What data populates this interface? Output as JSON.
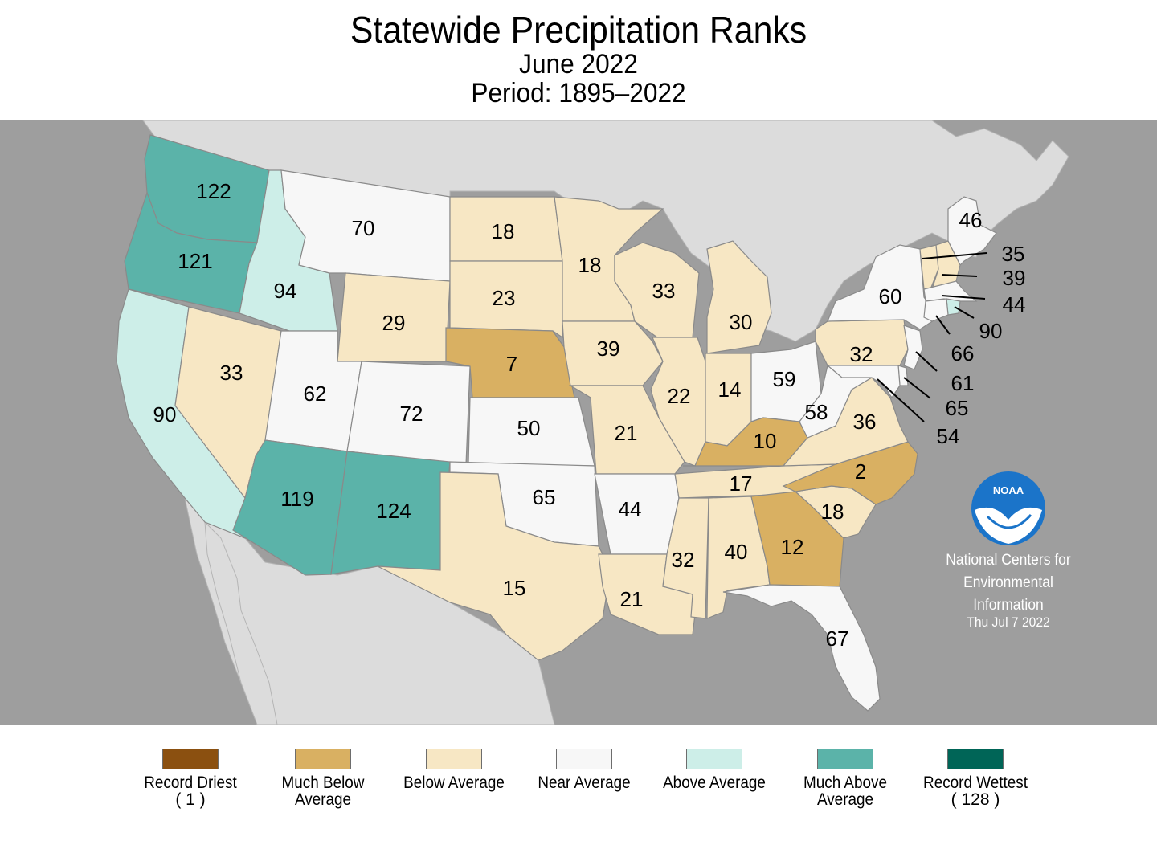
{
  "header": {
    "title": "Statewide Precipitation Ranks",
    "subtitle": "June 2022",
    "period": "Period: 1895–2022"
  },
  "colors": {
    "record_driest": "#8b5010",
    "much_below": "#d9b062",
    "below": "#f7e7c4",
    "near": "#f7f7f7",
    "above": "#cdeee8",
    "much_above": "#5bb3a9",
    "record_wettest": "#006557",
    "ocean": "#9e9e9e",
    "land": "#dcdcdc"
  },
  "states": [
    {
      "code": "WA",
      "rank": "122",
      "category": "much_above"
    },
    {
      "code": "OR",
      "rank": "121",
      "category": "much_above"
    },
    {
      "code": "CA",
      "rank": "90",
      "category": "above"
    },
    {
      "code": "ID",
      "rank": "94",
      "category": "above"
    },
    {
      "code": "NV",
      "rank": "33",
      "category": "below"
    },
    {
      "code": "MT",
      "rank": "70",
      "category": "near"
    },
    {
      "code": "WY",
      "rank": "29",
      "category": "below"
    },
    {
      "code": "UT",
      "rank": "62",
      "category": "near"
    },
    {
      "code": "CO",
      "rank": "72",
      "category": "near"
    },
    {
      "code": "AZ",
      "rank": "119",
      "category": "much_above"
    },
    {
      "code": "NM",
      "rank": "124",
      "category": "much_above"
    },
    {
      "code": "ND",
      "rank": "18",
      "category": "below"
    },
    {
      "code": "SD",
      "rank": "23",
      "category": "below"
    },
    {
      "code": "NE",
      "rank": "7",
      "category": "much_below"
    },
    {
      "code": "KS",
      "rank": "50",
      "category": "near"
    },
    {
      "code": "OK",
      "rank": "65",
      "category": "near"
    },
    {
      "code": "TX",
      "rank": "15",
      "category": "below"
    },
    {
      "code": "MN",
      "rank": "18",
      "category": "below"
    },
    {
      "code": "IA",
      "rank": "39",
      "category": "below"
    },
    {
      "code": "MO",
      "rank": "21",
      "category": "below"
    },
    {
      "code": "AR",
      "rank": "44",
      "category": "near"
    },
    {
      "code": "LA",
      "rank": "21",
      "category": "below"
    },
    {
      "code": "WI",
      "rank": "33",
      "category": "below"
    },
    {
      "code": "IL",
      "rank": "22",
      "category": "below"
    },
    {
      "code": "MI",
      "rank": "30",
      "category": "below"
    },
    {
      "code": "IN",
      "rank": "14",
      "category": "below"
    },
    {
      "code": "OH",
      "rank": "59",
      "category": "near"
    },
    {
      "code": "KY",
      "rank": "10",
      "category": "much_below"
    },
    {
      "code": "TN",
      "rank": "17",
      "category": "below"
    },
    {
      "code": "MS",
      "rank": "32",
      "category": "below"
    },
    {
      "code": "AL",
      "rank": "40",
      "category": "below"
    },
    {
      "code": "GA",
      "rank": "12",
      "category": "much_below"
    },
    {
      "code": "FL",
      "rank": "67",
      "category": "near"
    },
    {
      "code": "SC",
      "rank": "18",
      "category": "below"
    },
    {
      "code": "NC",
      "rank": "2",
      "category": "much_below"
    },
    {
      "code": "VA",
      "rank": "36",
      "category": "below"
    },
    {
      "code": "WV",
      "rank": "58",
      "category": "near"
    },
    {
      "code": "PA",
      "rank": "32",
      "category": "below"
    },
    {
      "code": "NY",
      "rank": "60",
      "category": "near"
    },
    {
      "code": "ME",
      "rank": "46",
      "category": "near"
    },
    {
      "code": "VT",
      "rank": "35",
      "category": "below"
    },
    {
      "code": "NH",
      "rank": "39",
      "category": "below"
    },
    {
      "code": "MA",
      "rank": "44",
      "category": "near"
    },
    {
      "code": "RI",
      "rank": "90",
      "category": "above"
    },
    {
      "code": "CT",
      "rank": "66",
      "category": "near"
    },
    {
      "code": "NJ",
      "rank": "61",
      "category": "near"
    },
    {
      "code": "DE",
      "rank": "65",
      "category": "near"
    },
    {
      "code": "MD",
      "rank": "54",
      "category": "near"
    }
  ],
  "legend": [
    {
      "label": "Record Driest",
      "note": "( 1 )",
      "category": "record_driest"
    },
    {
      "label": "Much Below Average",
      "note": "",
      "category": "much_below"
    },
    {
      "label": "Below Average",
      "note": "",
      "category": "below"
    },
    {
      "label": "Near Average",
      "note": "",
      "category": "near"
    },
    {
      "label": "Above Average",
      "note": "",
      "category": "above"
    },
    {
      "label": "Much Above Average",
      "note": "",
      "category": "much_above"
    },
    {
      "label": "Record Wettest",
      "note": "( 128 )",
      "category": "record_wettest"
    }
  ],
  "credit": {
    "logo_text": "NOAA",
    "org_line1": "National Centers for",
    "org_line2": "Environmental",
    "org_line3": "Information",
    "date": "Thu Jul  7 2022"
  }
}
